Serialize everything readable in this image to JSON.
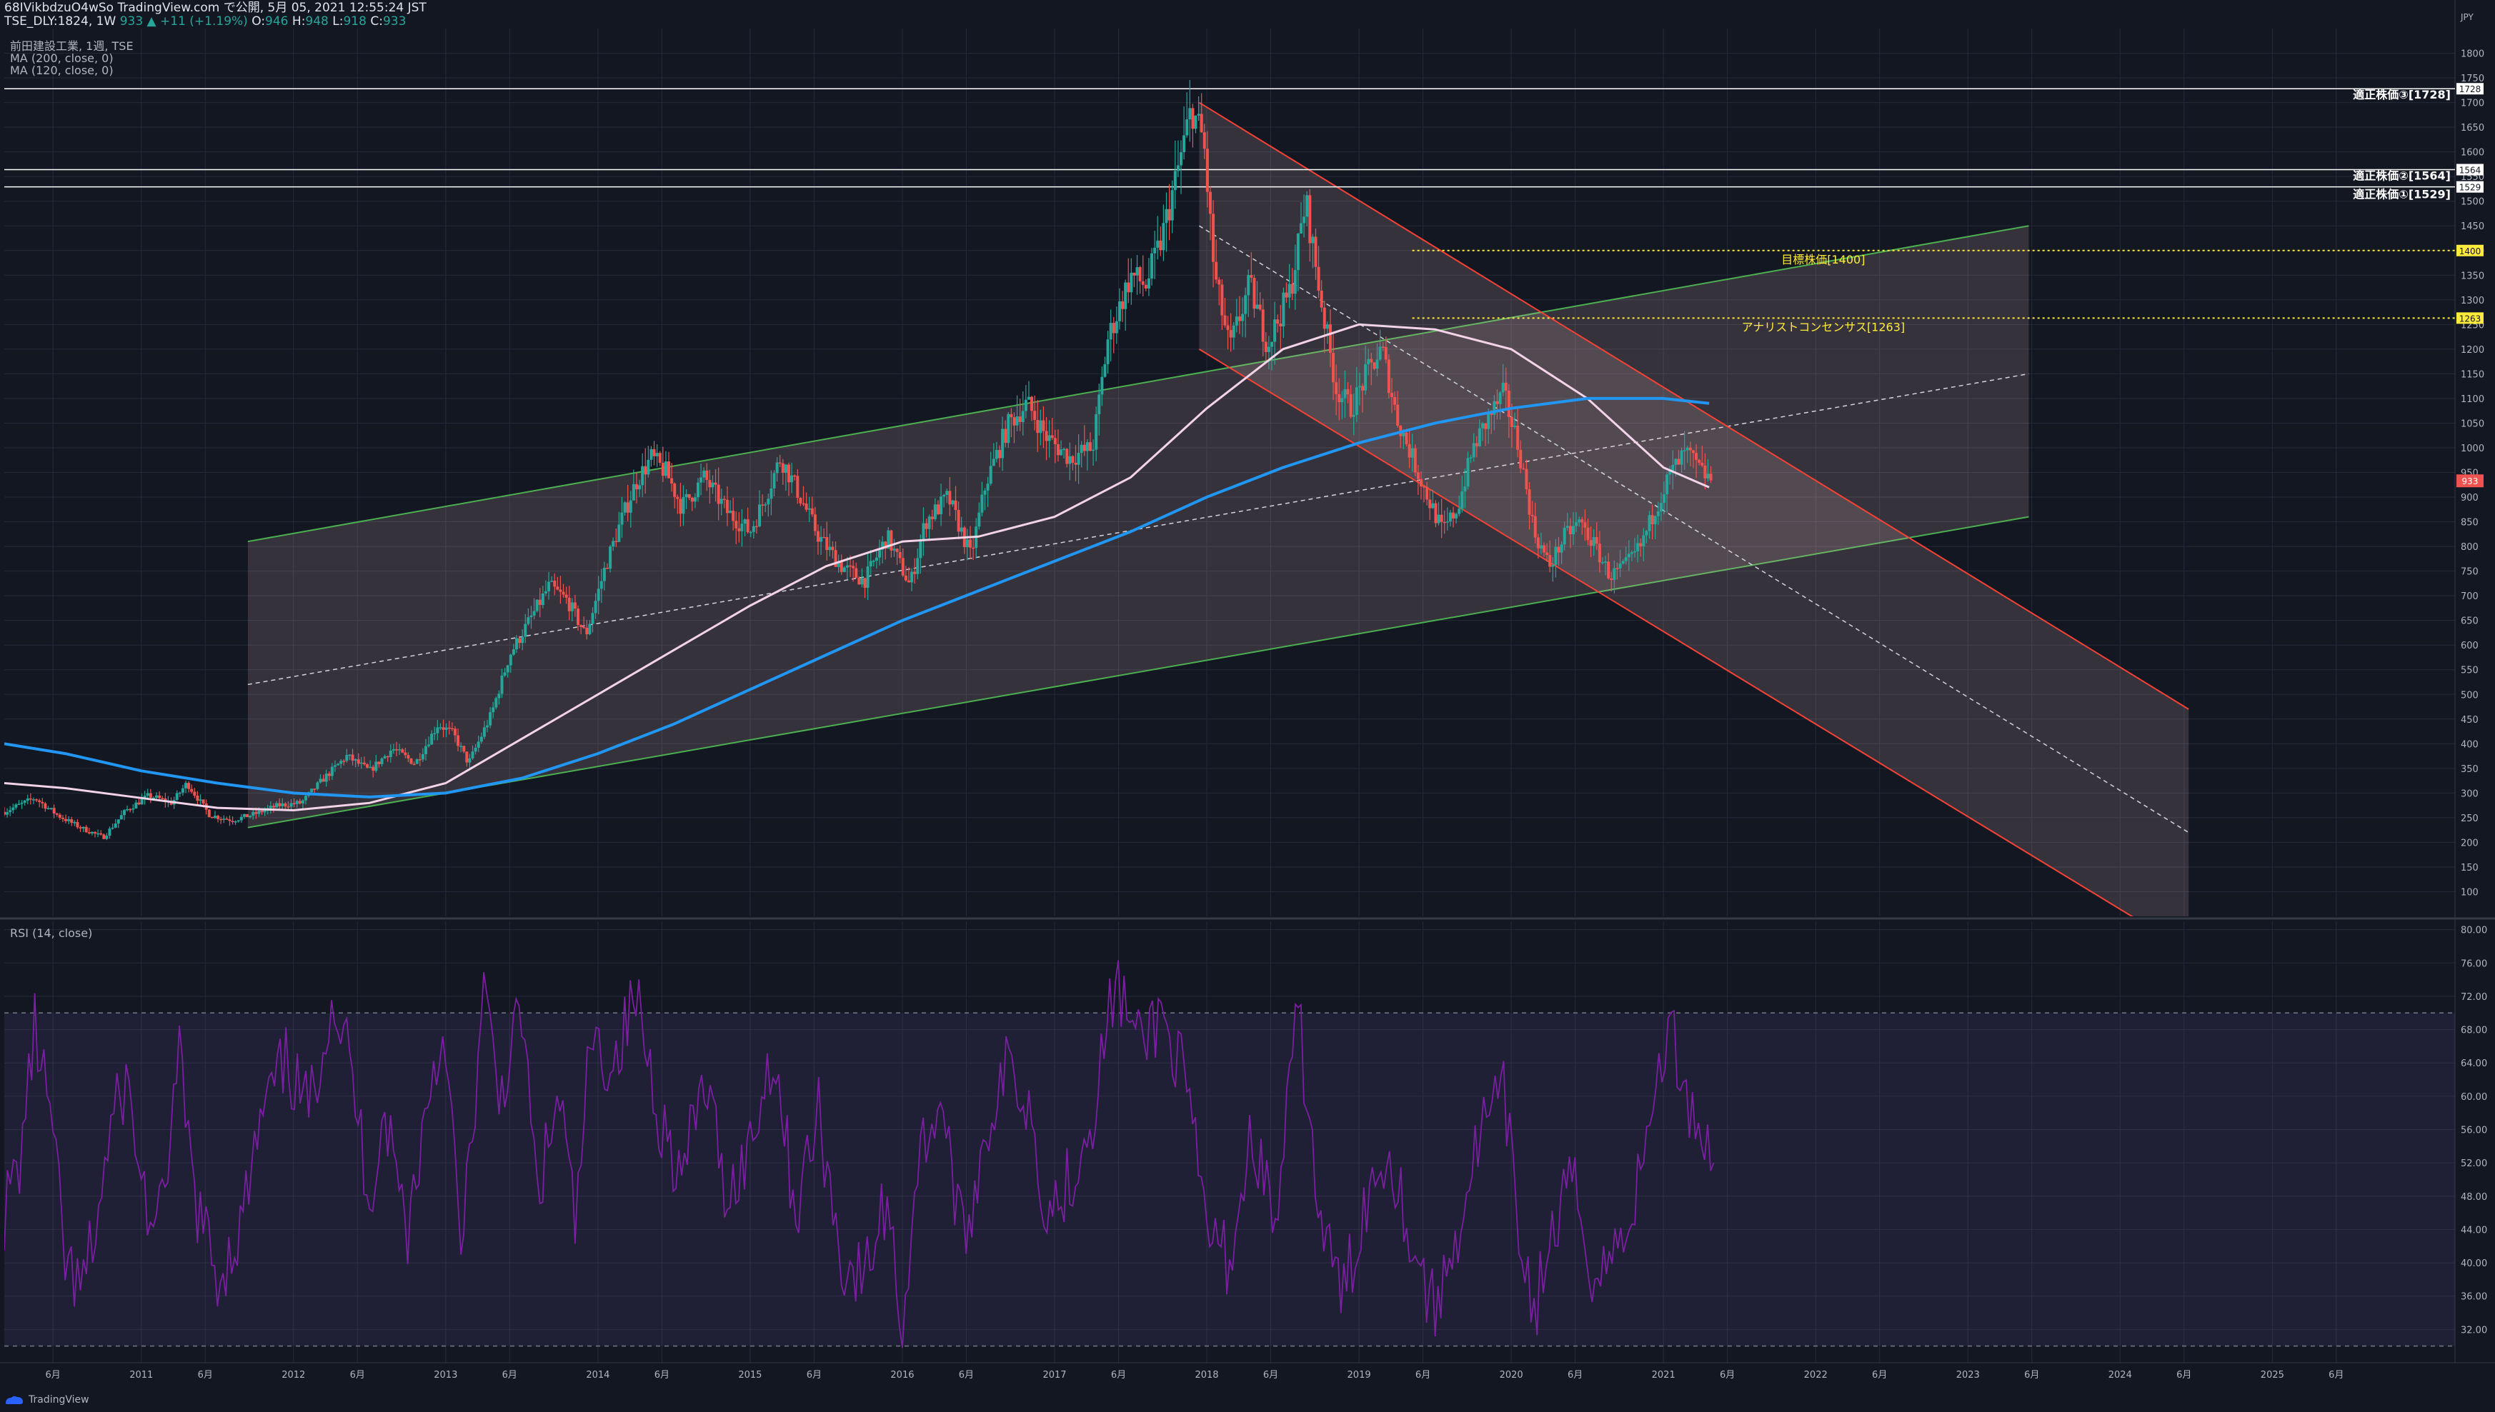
{
  "header": {
    "line1": "68IVikbdzuO4wSo TradingView.com で公開, 5月 05, 2021 12:55:24 JST",
    "symbol": "TSE_DLY:1824, 1W",
    "last": "933",
    "change": "▲ +11 (+1.19%)",
    "o_label": "O:",
    "o": "946",
    "h_label": "H:",
    "h": "948",
    "l_label": "L:",
    "l": "918",
    "c_label": "C:",
    "c": "933"
  },
  "legend": [
    "前田建設工業, 1週, TSE",
    "MA (200, close, 0)",
    "MA (120, close, 0)"
  ],
  "rsi_legend": "RSI (14, close)",
  "brand": "TradingView",
  "colors": {
    "bg": "#131722",
    "grid": "#252a3a",
    "up": "#26a69a",
    "down": "#ef5350",
    "ma200": "#2196f3",
    "ma120": "#f3d3e8",
    "rsi": "#7b1fa2",
    "rsi_band": "#2a1f4a",
    "up_channel": "#4caf50",
    "down_channel": "#f44336",
    "target": "#ffeb3b"
  },
  "chart_data": [
    {
      "type": "candlestick",
      "title": "前田建設工業, 1週, TSE",
      "currency": "JPY",
      "ylim": [
        50,
        1850
      ],
      "y_ticks": [
        100,
        150,
        200,
        250,
        300,
        350,
        400,
        450,
        500,
        550,
        600,
        650,
        700,
        750,
        800,
        850,
        900,
        950,
        1000,
        1050,
        1100,
        1150,
        1200,
        1250,
        1300,
        1350,
        1400,
        1450,
        1500,
        1550,
        1600,
        1650,
        1700,
        1750,
        1800
      ],
      "x_ticks": [
        "6月",
        "2011",
        "6月",
        "2012",
        "6月",
        "2013",
        "6月",
        "2014",
        "6月",
        "2015",
        "6月",
        "2016",
        "6月",
        "2017",
        "6月",
        "2018",
        "6月",
        "2019",
        "6月",
        "2020",
        "6月",
        "2021",
        "6月",
        "2022",
        "6月",
        "2023",
        "6月",
        "2024",
        "6月",
        "2025",
        "6月"
      ],
      "x_tick_times": [
        2010.42,
        2011.0,
        2011.42,
        2012.0,
        2012.42,
        2013.0,
        2013.42,
        2014.0,
        2014.42,
        2015.0,
        2015.42,
        2016.0,
        2016.42,
        2017.0,
        2017.42,
        2018.0,
        2018.42,
        2019.0,
        2019.42,
        2020.0,
        2020.42,
        2021.0,
        2021.42,
        2022.0,
        2022.42,
        2023.0,
        2023.42,
        2024.0,
        2024.42,
        2025.0,
        2025.42
      ],
      "x_range": [
        2010.1,
        2026.2
      ],
      "price_path": [
        [
          2010.1,
          262
        ],
        [
          2010.3,
          290
        ],
        [
          2010.45,
          255
        ],
        [
          2010.6,
          230
        ],
        [
          2010.75,
          210
        ],
        [
          2010.9,
          265
        ],
        [
          2011.05,
          295
        ],
        [
          2011.2,
          280
        ],
        [
          2011.3,
          320
        ],
        [
          2011.45,
          255
        ],
        [
          2011.6,
          245
        ],
        [
          2011.75,
          258
        ],
        [
          2011.9,
          275
        ],
        [
          2012.05,
          280
        ],
        [
          2012.2,
          330
        ],
        [
          2012.35,
          375
        ],
        [
          2012.5,
          345
        ],
        [
          2012.65,
          390
        ],
        [
          2012.8,
          360
        ],
        [
          2012.95,
          440
        ],
        [
          2013.05,
          420
        ],
        [
          2013.15,
          360
        ],
        [
          2013.3,
          460
        ],
        [
          2013.42,
          580
        ],
        [
          2013.55,
          650
        ],
        [
          2013.68,
          720
        ],
        [
          2013.8,
          690
        ],
        [
          2013.92,
          620
        ],
        [
          2014.05,
          760
        ],
        [
          2014.15,
          850
        ],
        [
          2014.25,
          930
        ],
        [
          2014.35,
          980
        ],
        [
          2014.45,
          950
        ],
        [
          2014.55,
          880
        ],
        [
          2014.7,
          940
        ],
        [
          2014.85,
          870
        ],
        [
          2015.0,
          830
        ],
        [
          2015.1,
          900
        ],
        [
          2015.2,
          980
        ],
        [
          2015.3,
          920
        ],
        [
          2015.45,
          820
        ],
        [
          2015.6,
          760
        ],
        [
          2015.75,
          730
        ],
        [
          2015.9,
          820
        ],
        [
          2016.05,
          720
        ],
        [
          2016.15,
          850
        ],
        [
          2016.3,
          900
        ],
        [
          2016.45,
          780
        ],
        [
          2016.55,
          930
        ],
        [
          2016.7,
          1050
        ],
        [
          2016.82,
          1090
        ],
        [
          2016.95,
          1020
        ],
        [
          2017.1,
          980
        ],
        [
          2017.25,
          1000
        ],
        [
          2017.35,
          1220
        ],
        [
          2017.5,
          1350
        ],
        [
          2017.6,
          1330
        ],
        [
          2017.7,
          1420
        ],
        [
          2017.8,
          1550
        ],
        [
          2017.9,
          1690
        ],
        [
          2017.98,
          1620
        ],
        [
          2018.05,
          1350
        ],
        [
          2018.15,
          1200
        ],
        [
          2018.28,
          1330
        ],
        [
          2018.4,
          1210
        ],
        [
          2018.55,
          1320
        ],
        [
          2018.65,
          1500
        ],
        [
          2018.75,
          1300
        ],
        [
          2018.85,
          1120
        ],
        [
          2018.95,
          1080
        ],
        [
          2019.05,
          1150
        ],
        [
          2019.15,
          1200
        ],
        [
          2019.25,
          1060
        ],
        [
          2019.35,
          980
        ],
        [
          2019.45,
          900
        ],
        [
          2019.55,
          830
        ],
        [
          2019.65,
          880
        ],
        [
          2019.75,
          1000
        ],
        [
          2019.85,
          1060
        ],
        [
          2019.95,
          1110
        ],
        [
          2020.05,
          1000
        ],
        [
          2020.15,
          830
        ],
        [
          2020.25,
          760
        ],
        [
          2020.35,
          820
        ],
        [
          2020.45,
          850
        ],
        [
          2020.55,
          800
        ],
        [
          2020.65,
          740
        ],
        [
          2020.75,
          760
        ],
        [
          2020.85,
          800
        ],
        [
          2020.95,
          880
        ],
        [
          2021.05,
          950
        ],
        [
          2021.15,
          990
        ],
        [
          2021.25,
          950
        ],
        [
          2021.33,
          933
        ]
      ],
      "ma200": [
        [
          2010.1,
          400
        ],
        [
          2010.5,
          380
        ],
        [
          2011.0,
          345
        ],
        [
          2011.5,
          320
        ],
        [
          2012.0,
          300
        ],
        [
          2012.5,
          292
        ],
        [
          2013.0,
          300
        ],
        [
          2013.5,
          330
        ],
        [
          2014.0,
          380
        ],
        [
          2014.5,
          440
        ],
        [
          2015.0,
          510
        ],
        [
          2015.5,
          580
        ],
        [
          2016.0,
          650
        ],
        [
          2016.5,
          710
        ],
        [
          2017.0,
          770
        ],
        [
          2017.5,
          830
        ],
        [
          2018.0,
          900
        ],
        [
          2018.5,
          960
        ],
        [
          2019.0,
          1010
        ],
        [
          2019.5,
          1050
        ],
        [
          2020.0,
          1080
        ],
        [
          2020.5,
          1100
        ],
        [
          2021.0,
          1100
        ],
        [
          2021.3,
          1090
        ]
      ],
      "ma120": [
        [
          2010.1,
          320
        ],
        [
          2010.5,
          310
        ],
        [
          2011.0,
          290
        ],
        [
          2011.5,
          270
        ],
        [
          2012.0,
          265
        ],
        [
          2012.5,
          280
        ],
        [
          2013.0,
          320
        ],
        [
          2013.5,
          410
        ],
        [
          2014.0,
          500
        ],
        [
          2014.5,
          590
        ],
        [
          2015.0,
          680
        ],
        [
          2015.5,
          760
        ],
        [
          2016.0,
          810
        ],
        [
          2016.5,
          820
        ],
        [
          2017.0,
          860
        ],
        [
          2017.5,
          940
        ],
        [
          2018.0,
          1080
        ],
        [
          2018.5,
          1200
        ],
        [
          2019.0,
          1250
        ],
        [
          2019.5,
          1240
        ],
        [
          2020.0,
          1200
        ],
        [
          2020.5,
          1100
        ],
        [
          2021.0,
          960
        ],
        [
          2021.3,
          920
        ]
      ],
      "up_channel": {
        "start": 2011.7,
        "end": 2023.4,
        "upper": [
          810,
          1450
        ],
        "mid": [
          520,
          1150
        ],
        "lower": [
          230,
          860
        ]
      },
      "down_channel": {
        "start": 2017.95,
        "end": 2024.45,
        "upper": [
          1700,
          470
        ],
        "mid": [
          1450,
          220
        ],
        "lower": [
          1200,
          -20
        ]
      },
      "hlines": [
        {
          "value": 1728,
          "label": "適正株価③[1728]",
          "color": "#ffffff",
          "style": "solid"
        },
        {
          "value": 1564,
          "label": "適正株価②[1564]",
          "color": "#ffffff",
          "style": "solid"
        },
        {
          "value": 1529,
          "label": "適正株価①[1529]",
          "color": "#ffffff",
          "style": "solid"
        },
        {
          "value": 1400,
          "label": "目標株価[1400]",
          "color": "#ffeb3b",
          "style": "dotted"
        },
        {
          "value": 1263,
          "label": "アナリストコンセンサス[1263]",
          "color": "#ffeb3b",
          "style": "dotted"
        }
      ],
      "last_price": 933
    },
    {
      "type": "line",
      "title": "RSI (14, close)",
      "ylim": [
        28,
        81
      ],
      "y_ticks": [
        32,
        36,
        40,
        44,
        48,
        52,
        56,
        60,
        64,
        68,
        72,
        76,
        80
      ],
      "band": [
        30,
        70
      ],
      "series": [
        {
          "values": [
            [
              2010.1,
              46
            ],
            [
              2010.2,
              52
            ],
            [
              2010.3,
              68
            ],
            [
              2010.4,
              58
            ],
            [
              2010.5,
              40
            ],
            [
              2010.6,
              36
            ],
            [
              2010.7,
              44
            ],
            [
              2010.8,
              56
            ],
            [
              2010.9,
              62
            ],
            [
              2011.0,
              50
            ],
            [
              2011.1,
              42
            ],
            [
              2011.25,
              64
            ],
            [
              2011.35,
              48
            ],
            [
              2011.5,
              38
            ],
            [
              2011.65,
              44
            ],
            [
              2011.8,
              58
            ],
            [
              2011.95,
              64
            ],
            [
              2012.1,
              58
            ],
            [
              2012.25,
              72
            ],
            [
              2012.35,
              66
            ],
            [
              2012.5,
              48
            ],
            [
              2012.6,
              58
            ],
            [
              2012.75,
              44
            ],
            [
              2012.9,
              62
            ],
            [
              2013.0,
              68
            ],
            [
              2013.1,
              40
            ],
            [
              2013.25,
              72
            ],
            [
              2013.35,
              60
            ],
            [
              2013.5,
              70
            ],
            [
              2013.6,
              48
            ],
            [
              2013.75,
              60
            ],
            [
              2013.85,
              44
            ],
            [
              2013.95,
              66
            ],
            [
              2014.1,
              64
            ],
            [
              2014.25,
              72
            ],
            [
              2014.4,
              58
            ],
            [
              2014.55,
              50
            ],
            [
              2014.7,
              62
            ],
            [
              2014.85,
              48
            ],
            [
              2015.0,
              54
            ],
            [
              2015.15,
              66
            ],
            [
              2015.3,
              46
            ],
            [
              2015.45,
              58
            ],
            [
              2015.6,
              40
            ],
            [
              2015.75,
              38
            ],
            [
              2015.9,
              48
            ],
            [
              2016.0,
              32
            ],
            [
              2016.1,
              52
            ],
            [
              2016.25,
              60
            ],
            [
              2016.4,
              42
            ],
            [
              2016.55,
              56
            ],
            [
              2016.7,
              64
            ],
            [
              2016.85,
              58
            ],
            [
              2016.95,
              46
            ],
            [
              2017.1,
              50
            ],
            [
              2017.25,
              58
            ],
            [
              2017.4,
              74
            ],
            [
              2017.55,
              66
            ],
            [
              2017.7,
              70
            ],
            [
              2017.85,
              62
            ],
            [
              2018.0,
              44
            ],
            [
              2018.15,
              40
            ],
            [
              2018.3,
              56
            ],
            [
              2018.45,
              44
            ],
            [
              2018.6,
              70
            ],
            [
              2018.75,
              44
            ],
            [
              2018.9,
              36
            ],
            [
              2019.05,
              48
            ],
            [
              2019.2,
              54
            ],
            [
              2019.35,
              42
            ],
            [
              2019.5,
              34
            ],
            [
              2019.65,
              44
            ],
            [
              2019.8,
              56
            ],
            [
              2019.95,
              60
            ],
            [
              2020.05,
              44
            ],
            [
              2020.15,
              34
            ],
            [
              2020.25,
              42
            ],
            [
              2020.4,
              50
            ],
            [
              2020.55,
              38
            ],
            [
              2020.7,
              42
            ],
            [
              2020.85,
              50
            ],
            [
              2020.95,
              62
            ],
            [
              2021.05,
              68
            ],
            [
              2021.15,
              60
            ],
            [
              2021.25,
              56
            ],
            [
              2021.33,
              52
            ]
          ]
        }
      ]
    }
  ]
}
